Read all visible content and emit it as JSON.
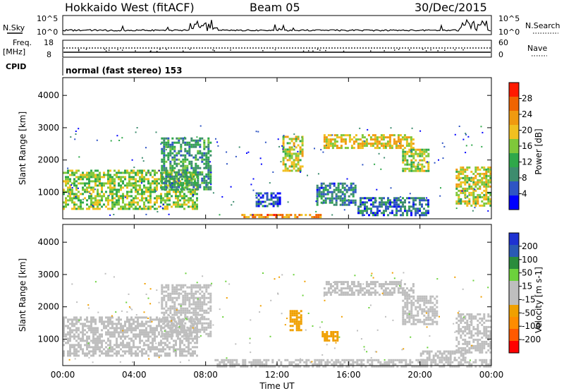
{
  "header": {
    "station": "Hokkaido West (fitACF)",
    "beam": "Beam 05",
    "date": "30/Dec/2015"
  },
  "summary_panel": {
    "nsky_label": "N.Sky",
    "nsearch_label": "N.Search",
    "left_ticks": [
      "10^5",
      "10^0"
    ],
    "right_ticks": [
      "10^5",
      "10^0"
    ],
    "freq_label": "Freq.",
    "freq_unit": "[MHz]",
    "freq_ticks": [
      "18",
      "8"
    ],
    "nave_label": "Nave",
    "nave_ticks": [
      "60",
      "0"
    ],
    "cpid_label": "CPID",
    "cpid_text": "normal (fast stereo) 153"
  },
  "colors": {
    "power_scale": [
      "#0000ff",
      "#2f55c4",
      "#3d8c6e",
      "#2fa84a",
      "#7fc83a",
      "#f0c020",
      "#f09a10",
      "#f06400",
      "#ff1a00"
    ],
    "velocity_scale": [
      "#ff0000",
      "#ff5a00",
      "#ff8c00",
      "#f0a000",
      "#bebebe",
      "#bebebe",
      "#6cd23c",
      "#2a8c3c",
      "#2a5ab4",
      "#1e32d2"
    ]
  },
  "chart_data": [
    {
      "type": "heatmap",
      "name": "power",
      "x": {
        "ticks": [
          "00:00",
          "04:00",
          "08:00",
          "12:00",
          "16:00",
          "20:00",
          "00:00"
        ],
        "range": [
          0,
          24
        ]
      },
      "ylabel": "Slant Range [km]",
      "yticks": [
        "1000",
        "2000",
        "3000",
        "4000"
      ],
      "ylim": [
        180,
        4550
      ],
      "colorbar": {
        "label": "Power [dB]",
        "ticks": [
          "4",
          "8",
          "12",
          "16",
          "20",
          "24",
          "28"
        ],
        "range": [
          0,
          32
        ]
      },
      "regions": [
        {
          "x0": 0.0,
          "x1": 7.5,
          "r0": 520,
          "r1": 1700,
          "v": 16
        },
        {
          "x0": 5.5,
          "x1": 8.3,
          "r0": 1100,
          "r1": 2700,
          "v": 10
        },
        {
          "x0": 10.0,
          "x1": 14.5,
          "r0": 200,
          "r1": 330,
          "v": 24
        },
        {
          "x0": 10.8,
          "x1": 12.2,
          "r0": 600,
          "r1": 1000,
          "v": 6
        },
        {
          "x0": 12.3,
          "x1": 13.4,
          "r0": 1700,
          "r1": 2750,
          "v": 18
        },
        {
          "x0": 14.2,
          "x1": 16.4,
          "r0": 600,
          "r1": 1300,
          "v": 8
        },
        {
          "x0": 14.6,
          "x1": 19.6,
          "r0": 2350,
          "r1": 2800,
          "v": 20
        },
        {
          "x0": 19.0,
          "x1": 20.5,
          "r0": 1650,
          "r1": 2350,
          "v": 17
        },
        {
          "x0": 16.5,
          "x1": 20.5,
          "r0": 300,
          "r1": 850,
          "v": 7
        },
        {
          "x0": 22.0,
          "x1": 24.0,
          "r0": 600,
          "r1": 1800,
          "v": 18
        }
      ]
    },
    {
      "type": "heatmap",
      "name": "velocity",
      "x": {
        "ticks": [
          "00:00",
          "04:00",
          "08:00",
          "12:00",
          "16:00",
          "20:00",
          "00:00"
        ],
        "range": [
          0,
          24
        ],
        "label": "Time UT"
      },
      "ylabel": "Slant Range [km]",
      "yticks": [
        "1000",
        "2000",
        "3000",
        "4000"
      ],
      "ylim": [
        180,
        4550
      ],
      "colorbar": {
        "label": "Velocity [m s-1]",
        "ticks": [
          "200",
          "100",
          "50",
          "15",
          "-15",
          "-50",
          "-100",
          "-200"
        ],
        "range": [
          -250,
          250
        ]
      },
      "regions": [
        {
          "x0": 0.0,
          "x1": 7.5,
          "r0": 520,
          "r1": 1700,
          "v": 0
        },
        {
          "x0": 5.5,
          "x1": 8.3,
          "r0": 1100,
          "r1": 2700,
          "v": 0
        },
        {
          "x0": 8.5,
          "x1": 24.0,
          "r0": 180,
          "r1": 380,
          "v": 30
        },
        {
          "x0": 12.7,
          "x1": 13.3,
          "r0": 1300,
          "r1": 1900,
          "v": -70
        },
        {
          "x0": 14.5,
          "x1": 15.4,
          "r0": 950,
          "r1": 1250,
          "v": -80
        },
        {
          "x0": 14.6,
          "x1": 19.6,
          "r0": 2350,
          "r1": 2800,
          "v": 0
        },
        {
          "x0": 19.0,
          "x1": 21.0,
          "r0": 1450,
          "r1": 2350,
          "v": 5
        },
        {
          "x0": 20.0,
          "x1": 22.5,
          "r0": 350,
          "r1": 650,
          "v": -30
        },
        {
          "x0": 22.0,
          "x1": 24.0,
          "r0": 600,
          "r1": 1800,
          "v": 20
        }
      ]
    }
  ]
}
